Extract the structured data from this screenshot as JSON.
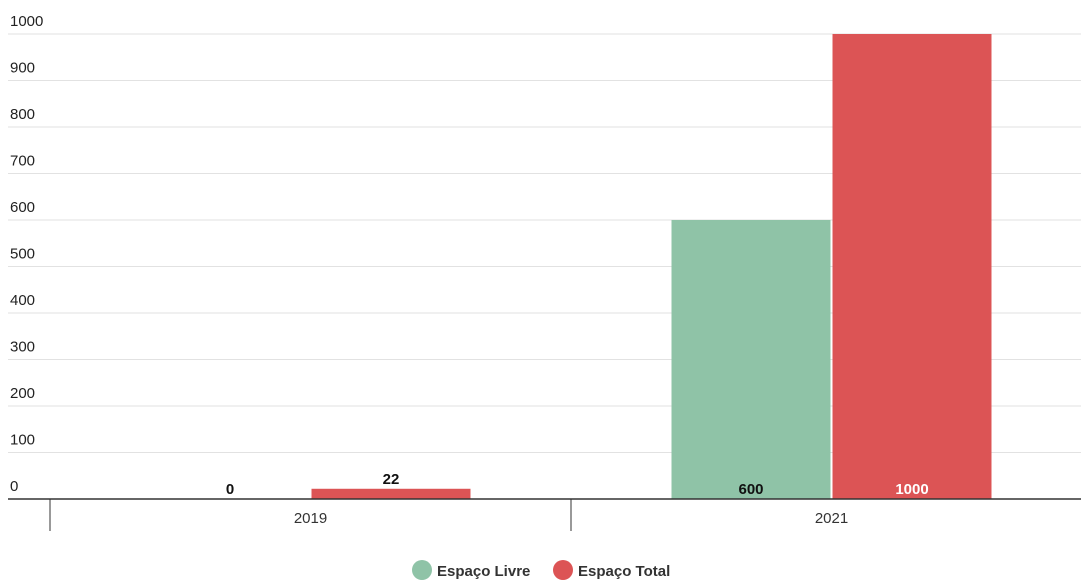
{
  "chart_data": {
    "type": "bar",
    "categories": [
      "2019",
      "2021"
    ],
    "series": [
      {
        "name": "Espaço Livre",
        "values": [
          0,
          600
        ],
        "color": "#8fc3a7"
      },
      {
        "name": "Espaço Total",
        "values": [
          22,
          1000
        ],
        "color": "#dc5455"
      }
    ],
    "data_labels": [
      [
        "0",
        "600"
      ],
      [
        "22",
        "1000"
      ]
    ],
    "data_label_colors": [
      [
        "#111111",
        "#111111"
      ],
      [
        "#111111",
        "#ffffff"
      ]
    ],
    "yticks": [
      "0",
      "100",
      "200",
      "300",
      "400",
      "500",
      "600",
      "700",
      "800",
      "900",
      "1000"
    ],
    "ylim": [
      0,
      1000
    ],
    "grid": true,
    "legend": "bottom-center",
    "title": "",
    "xlabel": "",
    "ylabel": ""
  }
}
